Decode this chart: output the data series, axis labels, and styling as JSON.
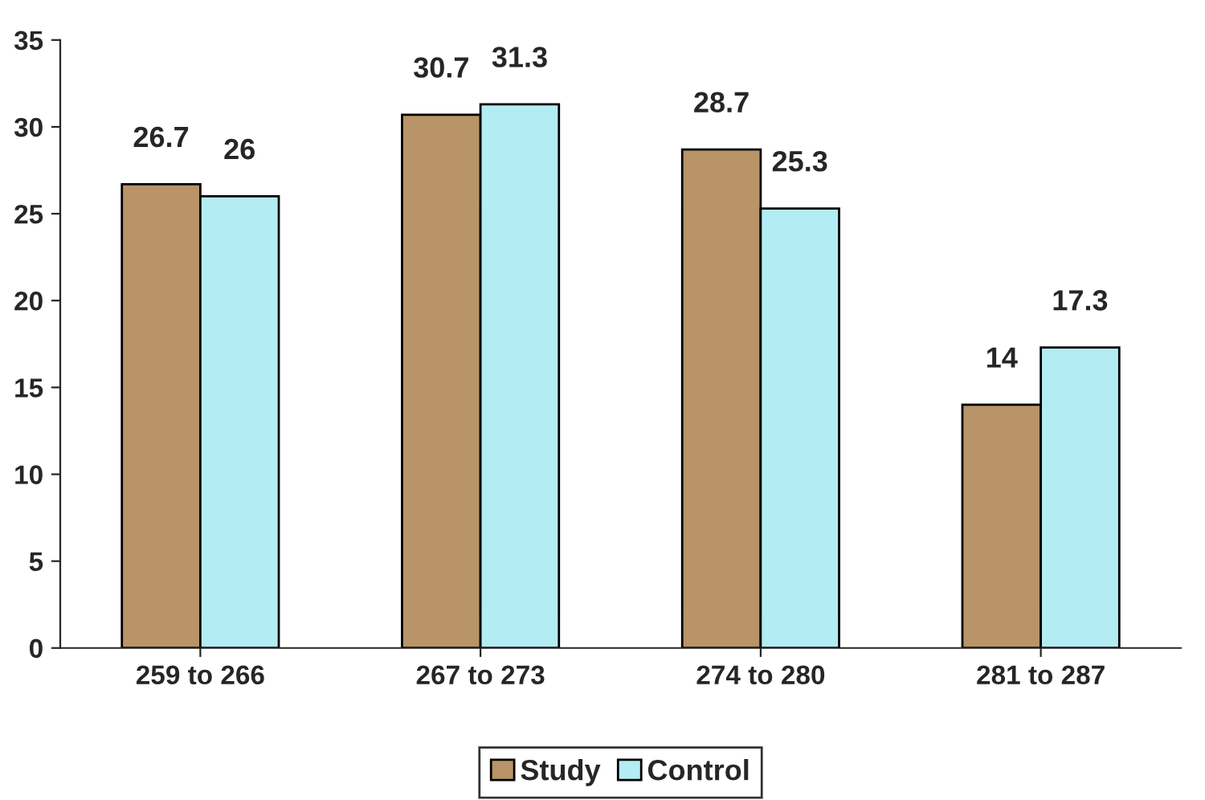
{
  "chart_data": {
    "type": "bar",
    "categories": [
      "259 to 266",
      "267 to 273",
      "274 to 280",
      "281 to 287"
    ],
    "series": [
      {
        "name": "Study",
        "color": "#b89468",
        "values": [
          26.7,
          30.7,
          28.7,
          14
        ]
      },
      {
        "name": "Control",
        "color": "#b4ecf4",
        "values": [
          26,
          31.3,
          25.3,
          17.3
        ]
      }
    ],
    "ylim": [
      0,
      35
    ],
    "yticks": [
      0,
      5,
      10,
      15,
      20,
      25,
      30,
      35
    ],
    "data_labels": true,
    "legend": "bottom",
    "grid": false
  }
}
